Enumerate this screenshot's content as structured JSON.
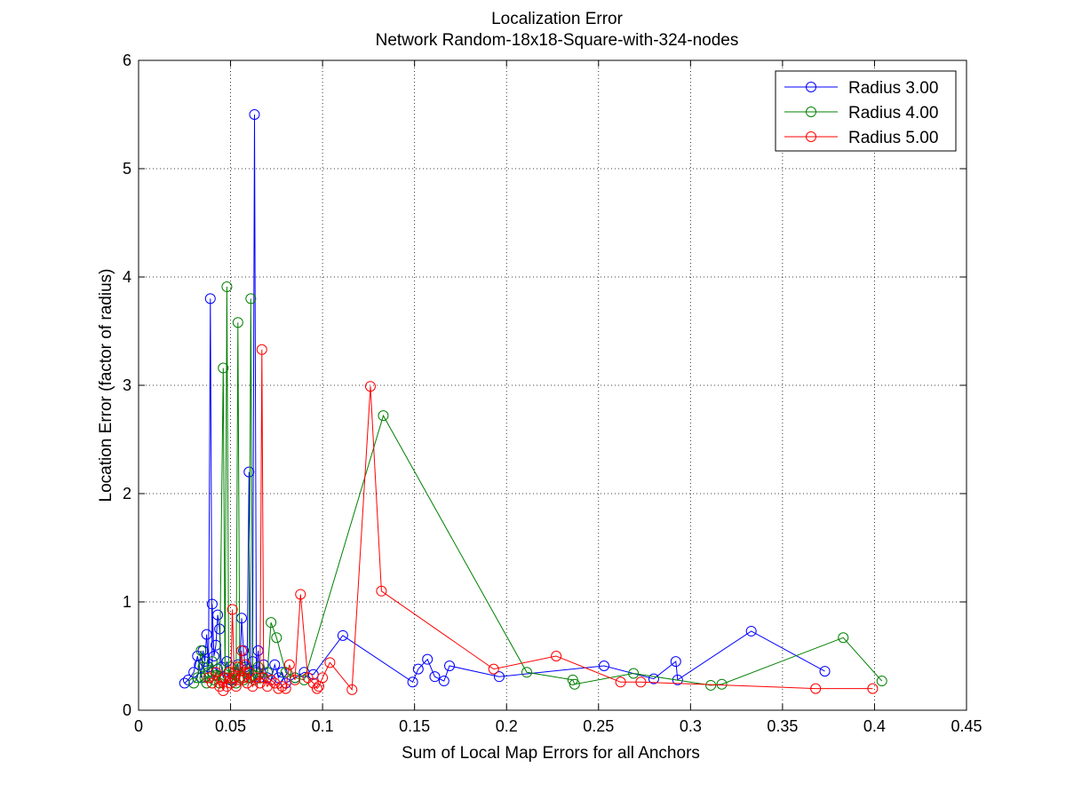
{
  "chart_data": {
    "type": "line",
    "title": "Localization Error",
    "subtitle": "Network Random-18x18-Square-with-324-nodes",
    "xlabel": "Sum of Local Map Errors for all Anchors",
    "ylabel": "Location Error (factor of radius)",
    "xlim": [
      0,
      0.45
    ],
    "ylim": [
      0,
      6
    ],
    "xticks": [
      0,
      0.05,
      0.1,
      0.15,
      0.2,
      0.25,
      0.3,
      0.35,
      0.4,
      0.45
    ],
    "xtick_labels": [
      "0",
      "0.05",
      "0.1",
      "0.15",
      "0.2",
      "0.25",
      "0.3",
      "0.35",
      "0.4",
      "0.45"
    ],
    "yticks": [
      0,
      1,
      2,
      3,
      4,
      5,
      6
    ],
    "ytick_labels": [
      "0",
      "1",
      "2",
      "3",
      "4",
      "5",
      "6"
    ],
    "grid": true,
    "legend_position": "top-right",
    "marker": "circle",
    "series": [
      {
        "name": "Radius 3.00",
        "color": "#0000ff",
        "points": [
          [
            0.025,
            0.25
          ],
          [
            0.027,
            0.28
          ],
          [
            0.03,
            0.35
          ],
          [
            0.032,
            0.5
          ],
          [
            0.033,
            0.42
          ],
          [
            0.034,
            0.3
          ],
          [
            0.035,
            0.55
          ],
          [
            0.036,
            0.45
          ],
          [
            0.037,
            0.7
          ],
          [
            0.038,
            0.4
          ],
          [
            0.039,
            3.8
          ],
          [
            0.04,
            0.35
          ],
          [
            0.04,
            0.98
          ],
          [
            0.041,
            0.5
          ],
          [
            0.042,
            0.6
          ],
          [
            0.043,
            0.88
          ],
          [
            0.044,
            0.75
          ],
          [
            0.045,
            0.4
          ],
          [
            0.046,
            0.3
          ],
          [
            0.048,
            0.45
          ],
          [
            0.05,
            0.28
          ],
          [
            0.052,
            0.35
          ],
          [
            0.054,
            0.42
          ],
          [
            0.055,
            0.3
          ],
          [
            0.056,
            0.85
          ],
          [
            0.057,
            0.55
          ],
          [
            0.058,
            0.4
          ],
          [
            0.059,
            0.38
          ],
          [
            0.06,
            2.2
          ],
          [
            0.061,
            0.3
          ],
          [
            0.062,
            0.45
          ],
          [
            0.063,
            5.5
          ],
          [
            0.064,
            0.35
          ],
          [
            0.065,
            0.55
          ],
          [
            0.066,
            0.3
          ],
          [
            0.068,
            0.42
          ],
          [
            0.07,
            0.3
          ],
          [
            0.072,
            0.28
          ],
          [
            0.074,
            0.42
          ],
          [
            0.076,
            0.3
          ],
          [
            0.078,
            0.35
          ],
          [
            0.08,
            0.25
          ],
          [
            0.085,
            0.3
          ],
          [
            0.09,
            0.35
          ],
          [
            0.095,
            0.33
          ],
          [
            0.111,
            0.69
          ],
          [
            0.149,
            0.26
          ],
          [
            0.152,
            0.38
          ],
          [
            0.157,
            0.47
          ],
          [
            0.161,
            0.31
          ],
          [
            0.166,
            0.27
          ],
          [
            0.169,
            0.41
          ],
          [
            0.196,
            0.31
          ],
          [
            0.253,
            0.41
          ],
          [
            0.28,
            0.29
          ],
          [
            0.292,
            0.45
          ],
          [
            0.293,
            0.28
          ],
          [
            0.333,
            0.73
          ],
          [
            0.373,
            0.36
          ]
        ]
      },
      {
        "name": "Radius 4.00",
        "color": "#008000",
        "points": [
          [
            0.03,
            0.25
          ],
          [
            0.032,
            0.3
          ],
          [
            0.034,
            0.55
          ],
          [
            0.035,
            0.4
          ],
          [
            0.036,
            0.3
          ],
          [
            0.037,
            0.25
          ],
          [
            0.038,
            0.35
          ],
          [
            0.04,
            0.45
          ],
          [
            0.041,
            0.28
          ],
          [
            0.042,
            0.32
          ],
          [
            0.043,
            0.38
          ],
          [
            0.044,
            0.25
          ],
          [
            0.046,
            3.16
          ],
          [
            0.047,
            0.3
          ],
          [
            0.048,
            3.91
          ],
          [
            0.049,
            0.3
          ],
          [
            0.05,
            0.4
          ],
          [
            0.051,
            0.28
          ],
          [
            0.052,
            0.35
          ],
          [
            0.053,
            0.25
          ],
          [
            0.054,
            3.58
          ],
          [
            0.055,
            0.3
          ],
          [
            0.056,
            0.4
          ],
          [
            0.057,
            0.28
          ],
          [
            0.058,
            0.35
          ],
          [
            0.06,
            0.3
          ],
          [
            0.061,
            3.8
          ],
          [
            0.062,
            0.32
          ],
          [
            0.063,
            0.28
          ],
          [
            0.065,
            0.4
          ],
          [
            0.067,
            0.3
          ],
          [
            0.07,
            0.35
          ],
          [
            0.072,
            0.81
          ],
          [
            0.075,
            0.67
          ],
          [
            0.08,
            0.35
          ],
          [
            0.085,
            0.3
          ],
          [
            0.09,
            0.28
          ],
          [
            0.133,
            2.72
          ],
          [
            0.211,
            0.35
          ],
          [
            0.236,
            0.28
          ],
          [
            0.237,
            0.24
          ],
          [
            0.269,
            0.34
          ],
          [
            0.311,
            0.23
          ],
          [
            0.317,
            0.24
          ],
          [
            0.383,
            0.67
          ],
          [
            0.404,
            0.27
          ]
        ]
      },
      {
        "name": "Radius 5.00",
        "color": "#ff0000",
        "points": [
          [
            0.038,
            0.3
          ],
          [
            0.04,
            0.25
          ],
          [
            0.042,
            0.35
          ],
          [
            0.044,
            0.22
          ],
          [
            0.045,
            0.28
          ],
          [
            0.046,
            0.18
          ],
          [
            0.047,
            0.3
          ],
          [
            0.048,
            0.22
          ],
          [
            0.049,
            0.35
          ],
          [
            0.05,
            0.25
          ],
          [
            0.051,
            0.93
          ],
          [
            0.052,
            0.3
          ],
          [
            0.053,
            0.22
          ],
          [
            0.054,
            0.4
          ],
          [
            0.055,
            0.28
          ],
          [
            0.056,
            0.55
          ],
          [
            0.057,
            0.3
          ],
          [
            0.058,
            0.42
          ],
          [
            0.059,
            0.25
          ],
          [
            0.06,
            0.35
          ],
          [
            0.062,
            0.22
          ],
          [
            0.064,
            0.3
          ],
          [
            0.066,
            0.25
          ],
          [
            0.067,
            3.33
          ],
          [
            0.068,
            0.3
          ],
          [
            0.07,
            0.22
          ],
          [
            0.072,
            0.28
          ],
          [
            0.074,
            0.25
          ],
          [
            0.076,
            0.2
          ],
          [
            0.078,
            0.22
          ],
          [
            0.08,
            0.2
          ],
          [
            0.082,
            0.42
          ],
          [
            0.085,
            0.28
          ],
          [
            0.088,
            1.07
          ],
          [
            0.092,
            0.3
          ],
          [
            0.095,
            0.25
          ],
          [
            0.097,
            0.2
          ],
          [
            0.098,
            0.22
          ],
          [
            0.1,
            0.3
          ],
          [
            0.104,
            0.44
          ],
          [
            0.116,
            0.19
          ],
          [
            0.126,
            2.99
          ],
          [
            0.132,
            1.1
          ],
          [
            0.193,
            0.38
          ],
          [
            0.227,
            0.5
          ],
          [
            0.262,
            0.26
          ],
          [
            0.273,
            0.26
          ],
          [
            0.368,
            0.2
          ],
          [
            0.399,
            0.2
          ]
        ]
      }
    ]
  }
}
